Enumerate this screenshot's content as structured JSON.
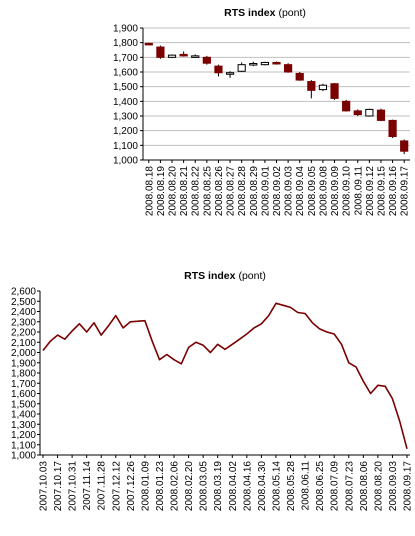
{
  "chart_data": [
    {
      "type": "candlestick",
      "title": "RTS index",
      "title_unit": "(pont)",
      "ylim": [
        1000,
        1900
      ],
      "yticks": [
        1000,
        1100,
        1200,
        1300,
        1400,
        1500,
        1600,
        1700,
        1800,
        1900
      ],
      "ytick_labels": [
        "1,000",
        "1,100",
        "1,200",
        "1,300",
        "1,400",
        "1,500",
        "1,600",
        "1,700",
        "1,800",
        "1,900"
      ],
      "grid": true,
      "colors": {
        "down": "#7b0000",
        "up": "#ffffff",
        "wick": "#000000"
      },
      "categories": [
        "2008.08.18",
        "2008.08.19",
        "2008.08.20",
        "2008.08.21",
        "2008.08.22",
        "2008.08.25",
        "2008.08.26",
        "2008.08.27",
        "2008.08.28",
        "2008.08.29",
        "2008.09.01",
        "2008.09.02",
        "2008.09.03",
        "2008.09.04",
        "2008.09.05",
        "2008.09.08",
        "2008.09.09",
        "2008.09.10",
        "2008.09.11",
        "2008.09.12",
        "2008.09.15",
        "2008.09.16",
        "2008.09.17"
      ],
      "candles": [
        {
          "open": 1795,
          "close": 1790,
          "high": 1800,
          "low": 1785
        },
        {
          "open": 1770,
          "close": 1700,
          "high": 1780,
          "low": 1690
        },
        {
          "open": 1700,
          "close": 1715,
          "high": 1720,
          "low": 1695
        },
        {
          "open": 1720,
          "close": 1712,
          "high": 1740,
          "low": 1705
        },
        {
          "open": 1710,
          "close": 1710,
          "high": 1720,
          "low": 1700
        },
        {
          "open": 1700,
          "close": 1660,
          "high": 1710,
          "low": 1650
        },
        {
          "open": 1640,
          "close": 1595,
          "high": 1650,
          "low": 1570
        },
        {
          "open": 1595,
          "close": 1595,
          "high": 1605,
          "low": 1560
        },
        {
          "open": 1605,
          "close": 1650,
          "high": 1665,
          "low": 1600
        },
        {
          "open": 1650,
          "close": 1658,
          "high": 1670,
          "low": 1640
        },
        {
          "open": 1650,
          "close": 1665,
          "high": 1670,
          "low": 1645
        },
        {
          "open": 1665,
          "close": 1655,
          "high": 1672,
          "low": 1650
        },
        {
          "open": 1650,
          "close": 1600,
          "high": 1660,
          "low": 1595
        },
        {
          "open": 1590,
          "close": 1545,
          "high": 1600,
          "low": 1540
        },
        {
          "open": 1535,
          "close": 1475,
          "high": 1545,
          "low": 1420
        },
        {
          "open": 1480,
          "close": 1510,
          "high": 1520,
          "low": 1470
        },
        {
          "open": 1520,
          "close": 1420,
          "high": 1525,
          "low": 1410
        },
        {
          "open": 1400,
          "close": 1335,
          "high": 1410,
          "low": 1330
        },
        {
          "open": 1335,
          "close": 1310,
          "high": 1345,
          "low": 1300
        },
        {
          "open": 1300,
          "close": 1345,
          "high": 1350,
          "low": 1295
        },
        {
          "open": 1340,
          "close": 1270,
          "high": 1350,
          "low": 1265
        },
        {
          "open": 1270,
          "close": 1160,
          "high": 1275,
          "low": 1150
        },
        {
          "open": 1130,
          "close": 1060,
          "high": 1140,
          "low": 1040
        }
      ]
    },
    {
      "type": "line",
      "title": "RTS index",
      "title_unit": "(pont)",
      "ylim": [
        1000,
        2600
      ],
      "yticks": [
        1000,
        1100,
        1200,
        1300,
        1400,
        1500,
        1600,
        1700,
        1800,
        1900,
        2000,
        2100,
        2200,
        2300,
        2400,
        2500,
        2600
      ],
      "ytick_labels": [
        "1,000",
        "1,100",
        "1,200",
        "1,300",
        "1,400",
        "1,500",
        "1,600",
        "1,700",
        "1,800",
        "1,900",
        "2,000",
        "2,100",
        "2,200",
        "2,300",
        "2,400",
        "2,500",
        "2,600"
      ],
      "grid": false,
      "colors": {
        "line": "#7b0000"
      },
      "xtick_labels": [
        "2007.10.03",
        "2007.10.17",
        "2007.10.31",
        "2007.11.14",
        "2007.11.28",
        "2007.12.12",
        "2007.12.26",
        "2008.01.09",
        "2008.01.23",
        "2008.02.06",
        "2008.02.20",
        "2008.03.05",
        "2008.03.19",
        "2008.04.02",
        "2008.04.16",
        "2008.04.30",
        "2008.05.14",
        "2008.05.28",
        "2008.06.11",
        "2008.06.25",
        "2008.07.09",
        "2008.07.23",
        "2008.08.06",
        "2008.08.20",
        "2008.09.03",
        "2008.09.17"
      ],
      "x": [
        "2007.10.03",
        "2007.10.10",
        "2007.10.17",
        "2007.10.24",
        "2007.10.31",
        "2007.11.07",
        "2007.11.14",
        "2007.11.21",
        "2007.11.28",
        "2007.12.05",
        "2007.12.12",
        "2007.12.19",
        "2007.12.26",
        "2008.01.09",
        "2008.01.16",
        "2008.01.23",
        "2008.01.30",
        "2008.02.06",
        "2008.02.13",
        "2008.02.20",
        "2008.02.27",
        "2008.03.05",
        "2008.03.12",
        "2008.03.19",
        "2008.03.26",
        "2008.04.02",
        "2008.04.09",
        "2008.04.16",
        "2008.04.23",
        "2008.04.30",
        "2008.05.07",
        "2008.05.14",
        "2008.05.21",
        "2008.05.28",
        "2008.06.04",
        "2008.06.11",
        "2008.06.18",
        "2008.06.25",
        "2008.07.02",
        "2008.07.09",
        "2008.07.16",
        "2008.07.23",
        "2008.07.30",
        "2008.08.06",
        "2008.08.13",
        "2008.08.20",
        "2008.08.27",
        "2008.09.03",
        "2008.09.10",
        "2008.09.17"
      ],
      "values": [
        2020,
        2110,
        2170,
        2130,
        2210,
        2280,
        2200,
        2290,
        2170,
        2260,
        2360,
        2240,
        2300,
        2310,
        2110,
        1930,
        1980,
        1930,
        1890,
        2050,
        2100,
        2070,
        2000,
        2080,
        2030,
        2080,
        2130,
        2180,
        2240,
        2280,
        2360,
        2480,
        2460,
        2440,
        2390,
        2380,
        2290,
        2230,
        2200,
        2180,
        2080,
        1900,
        1860,
        1720,
        1600,
        1680,
        1670,
        1550,
        1330,
        1060
      ]
    }
  ]
}
